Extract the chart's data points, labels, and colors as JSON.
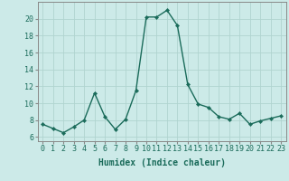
{
  "x": [
    0,
    1,
    2,
    3,
    4,
    5,
    6,
    7,
    8,
    9,
    10,
    11,
    12,
    13,
    14,
    15,
    16,
    17,
    18,
    19,
    20,
    21,
    22,
    23
  ],
  "y": [
    7.5,
    7.0,
    6.5,
    7.2,
    8.0,
    11.2,
    8.4,
    6.9,
    8.1,
    11.5,
    20.2,
    20.2,
    21.0,
    19.2,
    12.2,
    9.9,
    9.5,
    8.4,
    8.1,
    8.8,
    7.5,
    7.9,
    8.2,
    8.5
  ],
  "line_color": "#1a6b5a",
  "marker": "D",
  "marker_size": 2.2,
  "line_width": 1.0,
  "bg_color": "#cceae8",
  "grid_color": "#b0d4d0",
  "xlabel": "Humidex (Indice chaleur)",
  "xlim": [
    -0.5,
    23.5
  ],
  "ylim": [
    5.5,
    22.0
  ],
  "xtick_labels": [
    "0",
    "1",
    "2",
    "3",
    "4",
    "5",
    "6",
    "7",
    "8",
    "9",
    "10",
    "11",
    "12",
    "13",
    "14",
    "15",
    "16",
    "17",
    "18",
    "19",
    "20",
    "21",
    "22",
    "23"
  ],
  "yticks": [
    6,
    8,
    10,
    12,
    14,
    16,
    18,
    20
  ],
  "xlabel_fontsize": 7.0,
  "tick_fontsize": 6.0,
  "tick_color": "#1a6b5a",
  "spine_color": "#888888"
}
